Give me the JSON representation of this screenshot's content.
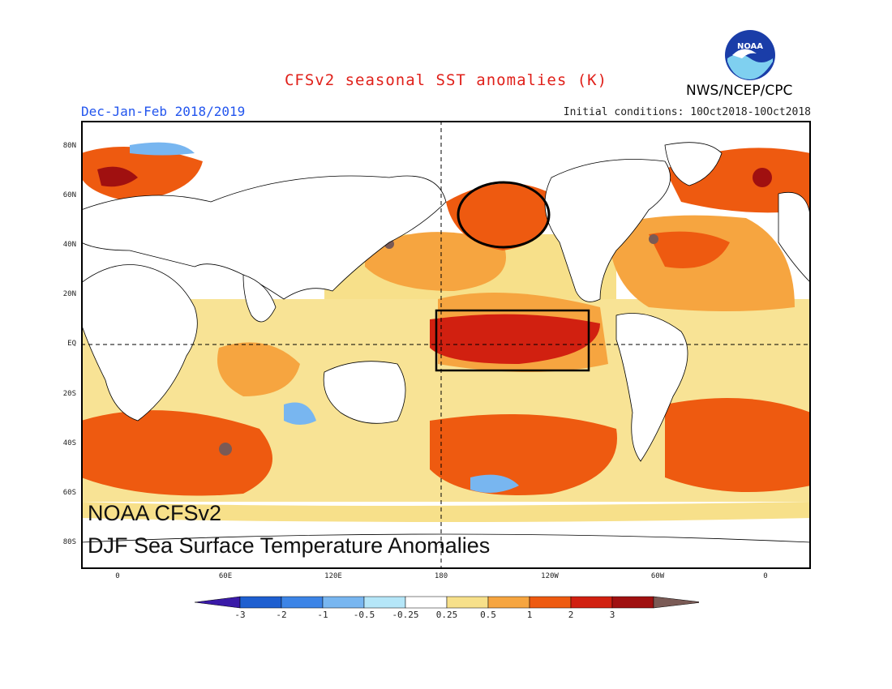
{
  "header": {
    "title": "CFSv2 seasonal SST anomalies (K)",
    "season": "Dec-Jan-Feb 2018/2019",
    "initial_conditions": "Initial conditions: 10Oct2018-10Oct2018",
    "agency": "NWS/NCEP/CPC",
    "logo_text": "NOAA"
  },
  "map": {
    "lat_ticks": [
      "80N",
      "60N",
      "40N",
      "20N",
      "EQ",
      "20S",
      "40S",
      "60S",
      "80S"
    ],
    "lon_ticks": [
      "0",
      "60E",
      "120E",
      "180",
      "120W",
      "60W",
      "0"
    ],
    "overlay_line1": "NOAA CFSv2",
    "overlay_line2": "DJF Sea Surface Temperature Anomalies"
  },
  "colorbar": {
    "labels": [
      "-3",
      "-2",
      "-1",
      "-0.5",
      "-0.25",
      "0.25",
      "0.5",
      "1",
      "2",
      "3"
    ],
    "colors": [
      "#3a1aa8",
      "#1e5fd0",
      "#3c84e6",
      "#78b6f0",
      "#b5e6f8",
      "#ffffff",
      "#f7e08a",
      "#f6a540",
      "#ee5a10",
      "#d12010",
      "#a01010",
      "#7a5a55"
    ]
  }
}
